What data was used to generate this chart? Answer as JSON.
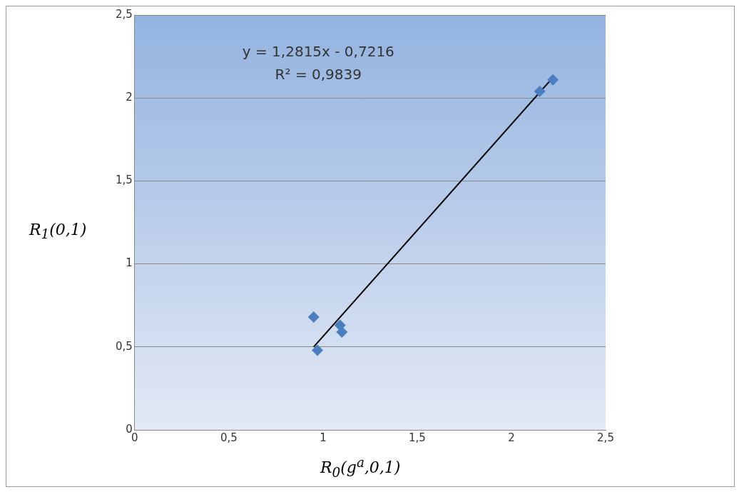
{
  "chart_data": {
    "type": "scatter",
    "xlabel": "R$_{0}$(g$^{a}$,0,1)",
    "ylabel": "R$_{1}$(0,1)",
    "annotations": [
      "y = 1,2815x - 0,7216",
      "R² = 0,9839"
    ],
    "series": [
      {
        "color": "#4a7ebf",
        "marker": "diamond",
        "x": [
          0.95,
          0.97,
          1.09,
          1.1,
          2.15,
          2.22
        ],
        "values": [
          0.68,
          0.48,
          0.63,
          0.59,
          2.04,
          2.11
        ]
      },
      {
        "type": "line",
        "color": "#000000",
        "marker": "none",
        "x": [
          0.95,
          2.21
        ],
        "values": [
          0.5,
          2.11
        ]
      }
    ],
    "xlim": [
      0,
      2.5
    ],
    "ylim": [
      0,
      2.5
    ],
    "xticks": [
      0,
      {
        "value": 0.5,
        "label": "0,5"
      },
      1,
      {
        "value": 1.5,
        "label": "1,5"
      },
      2,
      {
        "value": 2.5,
        "label": "2,5"
      }
    ],
    "yticks": [
      0,
      {
        "value": 0.5,
        "label": "0,5"
      },
      1,
      {
        "value": 1.5,
        "label": "1,5"
      },
      2,
      {
        "value": 2.5,
        "label": "2,5"
      }
    ],
    "grid": "y",
    "legend": false
  }
}
